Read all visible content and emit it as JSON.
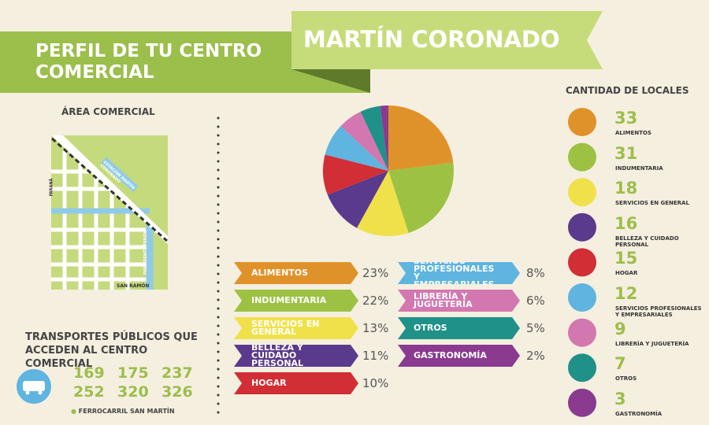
{
  "header": {
    "title": "PERFIL DE TU CENTRO COMERCIAL",
    "place": "MARTÍN CORONADO"
  },
  "map": {
    "title": "ÁREA COMERCIAL",
    "streets": [
      "PARANÁ",
      "ESTACIÓN MARTÍN CORONADO",
      "PRESIDENTE PERÓN",
      "SAN RAMÓN"
    ]
  },
  "transport": {
    "title": "TRANSPORTES PÚBLICOS QUE ACCEDEN AL CENTRO COMERCIAL",
    "lines": [
      169,
      175,
      237,
      252,
      320,
      326
    ],
    "note": "FERROCARRIL SAN MARTÍN"
  },
  "chart_data": {
    "type": "pie",
    "categories": [
      "ALIMENTOS",
      "INDUMENTARIA",
      "SERVICIOS EN GENERAL",
      "BELLEZA Y CUIDADO PERSONAL",
      "HOGAR",
      "SERVICIOS PROFESIONALES Y EMPRESARIALES",
      "LIBRERÍA Y JUGUETERÍA",
      "OTROS",
      "GASTRONOMÍA"
    ],
    "values": [
      23,
      22,
      13,
      11,
      10,
      8,
      6,
      5,
      2
    ],
    "value_labels": [
      "23%",
      "22%",
      "13%",
      "11%",
      "10%",
      "8%",
      "6%",
      "5%",
      "2%"
    ],
    "colors": [
      "#e0922a",
      "#9dc243",
      "#f0e14a",
      "#5a3a8c",
      "#d12e36",
      "#5fb4e0",
      "#d377b0",
      "#1f9188",
      "#8a3a8f"
    ]
  },
  "locales": {
    "title": "CANTIDAD DE LOCALES",
    "items": [
      {
        "count": 33,
        "label": "ALIMENTOS"
      },
      {
        "count": 31,
        "label": "INDUMENTARIA"
      },
      {
        "count": 18,
        "label": "SERVICIOS EN GENERAL"
      },
      {
        "count": 16,
        "label": "BELLEZA Y CUIDADO PERSONAL"
      },
      {
        "count": 15,
        "label": "HOGAR"
      },
      {
        "count": 12,
        "label": "SERVICIOS PROFESIONALES Y EMPRESARIALES"
      },
      {
        "count": 9,
        "label": "LIBRERÍA Y JUGUETERÍA"
      },
      {
        "count": 7,
        "label": "OTROS"
      },
      {
        "count": 3,
        "label": "GASTRONOMÍA"
      }
    ]
  }
}
